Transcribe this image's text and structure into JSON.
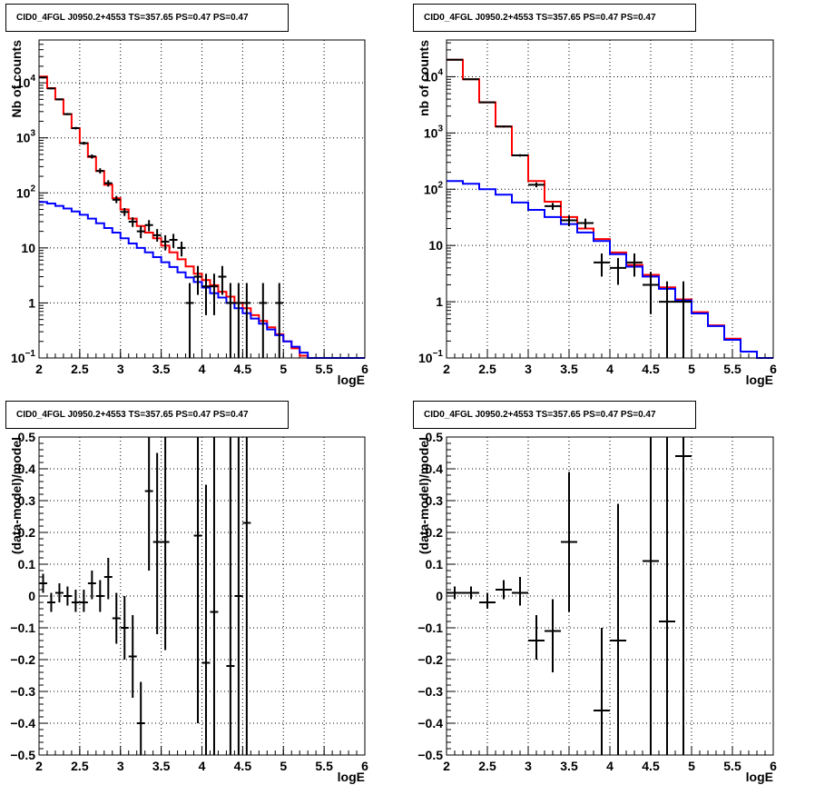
{
  "chart_data": [
    {
      "type": "line",
      "panel": "top-left",
      "title": "CID0_4FGL J0950.2+4553 TS=357.65 PS=0.47 PS=0.47",
      "xlabel": "logE",
      "ylabel": "Nb of counts",
      "xlim": [
        2,
        6
      ],
      "ylim": [
        0.1,
        60000
      ],
      "yscale": "log",
      "grid": true,
      "x_ticks": [
        "2",
        "2.5",
        "3",
        "3.5",
        "4",
        "4.5",
        "5",
        "5.5",
        "6"
      ],
      "y_ticks": [
        {
          "v": 0.1,
          "label": "10",
          "sup": "−1"
        },
        {
          "v": 1,
          "label": "1",
          "sup": ""
        },
        {
          "v": 10,
          "label": "10",
          "sup": ""
        },
        {
          "v": 100,
          "label": "10",
          "sup": "2"
        },
        {
          "v": 1000,
          "label": "10",
          "sup": "3"
        },
        {
          "v": 10000,
          "label": "10",
          "sup": "4"
        }
      ],
      "series": [
        {
          "color": "#ff0000",
          "edges": [
            2.0,
            2.1,
            2.2,
            2.3,
            2.4,
            2.5,
            2.6,
            2.7,
            2.8,
            2.9,
            3.0,
            3.1,
            3.2,
            3.3,
            3.4,
            3.5,
            3.6,
            3.7,
            3.8,
            3.9,
            4.0,
            4.1,
            4.2,
            4.3,
            4.4,
            4.5,
            4.6,
            4.7,
            4.8,
            4.9,
            5.0,
            5.1,
            5.2,
            5.3,
            5.4
          ],
          "values": [
            13000,
            8000,
            5000,
            2700,
            1500,
            800,
            450,
            250,
            140,
            80,
            50,
            34,
            25,
            19,
            15,
            11,
            8.3,
            6.2,
            4.6,
            3.4,
            2.6,
            2.1,
            1.6,
            1.3,
            1.0,
            0.8,
            0.6,
            0.47,
            0.36,
            0.27,
            0.2,
            0.15,
            0.11,
            0.1
          ]
        },
        {
          "color": "#0000ff",
          "edges": [
            2.0,
            2.1,
            2.2,
            2.3,
            2.4,
            2.5,
            2.6,
            2.7,
            2.8,
            2.9,
            3.0,
            3.1,
            3.2,
            3.3,
            3.4,
            3.5,
            3.6,
            3.7,
            3.8,
            3.9,
            4.0,
            4.1,
            4.2,
            4.3,
            4.4,
            4.5,
            4.6,
            4.7,
            4.8,
            4.9,
            5.0,
            5.1,
            5.2,
            5.3,
            5.4,
            5.5,
            5.6,
            5.7,
            5.8,
            5.9,
            6.0
          ],
          "values": [
            68,
            64,
            58,
            52,
            46,
            40,
            34,
            28,
            23,
            19,
            15,
            12,
            10,
            8.3,
            6.8,
            5.5,
            4.5,
            3.6,
            2.9,
            2.4,
            1.9,
            1.5,
            1.25,
            1.0,
            0.8,
            0.65,
            0.52,
            0.42,
            0.33,
            0.26,
            0.2,
            0.16,
            0.125,
            0.1,
            0.1,
            0.1,
            0.1,
            0.1,
            0.1,
            0.1
          ]
        }
      ],
      "points": {
        "color": "#000000",
        "xerr": 0.05,
        "data": [
          {
            "x": 2.05,
            "y": 12500,
            "lo": 12000,
            "hi": 13000
          },
          {
            "x": 2.15,
            "y": 7900,
            "lo": 7600,
            "hi": 8200
          },
          {
            "x": 2.25,
            "y": 5000,
            "lo": 4800,
            "hi": 5200
          },
          {
            "x": 2.35,
            "y": 2700,
            "lo": 2580,
            "hi": 2820
          },
          {
            "x": 2.45,
            "y": 1500,
            "lo": 1420,
            "hi": 1580
          },
          {
            "x": 2.55,
            "y": 800,
            "lo": 750,
            "hi": 850
          },
          {
            "x": 2.65,
            "y": 460,
            "lo": 420,
            "hi": 500
          },
          {
            "x": 2.75,
            "y": 250,
            "lo": 225,
            "hi": 280
          },
          {
            "x": 2.85,
            "y": 150,
            "lo": 130,
            "hi": 170
          },
          {
            "x": 2.95,
            "y": 75,
            "lo": 65,
            "hi": 88
          },
          {
            "x": 3.05,
            "y": 45,
            "lo": 38,
            "hi": 53
          },
          {
            "x": 3.15,
            "y": 30,
            "lo": 24,
            "hi": 36
          },
          {
            "x": 3.25,
            "y": 20,
            "lo": 15,
            "hi": 25
          },
          {
            "x": 3.35,
            "y": 26,
            "lo": 20,
            "hi": 32
          },
          {
            "x": 3.45,
            "y": 17,
            "lo": 13,
            "hi": 22
          },
          {
            "x": 3.55,
            "y": 13,
            "lo": 9,
            "hi": 17
          },
          {
            "x": 3.65,
            "y": 14,
            "lo": 10,
            "hi": 18
          },
          {
            "x": 3.75,
            "y": 10,
            "lo": 7,
            "hi": 13
          },
          {
            "x": 3.85,
            "y": 1,
            "lo": 0.1,
            "hi": 2.3
          },
          {
            "x": 3.95,
            "y": 3,
            "lo": 1.4,
            "hi": 4.7
          },
          {
            "x": 4.05,
            "y": 2,
            "lo": 0.6,
            "hi": 3.4
          },
          {
            "x": 4.15,
            "y": 2,
            "lo": 0.6,
            "hi": 3.4
          },
          {
            "x": 4.25,
            "y": 3,
            "lo": 1.4,
            "hi": 4.7
          },
          {
            "x": 4.35,
            "y": 1,
            "lo": 0.1,
            "hi": 2.3
          },
          {
            "x": 4.45,
            "y": 1,
            "lo": 0.1,
            "hi": 2.3
          },
          {
            "x": 4.55,
            "y": 1,
            "lo": 0.1,
            "hi": 2.3
          },
          {
            "x": 4.75,
            "y": 1,
            "lo": 0.1,
            "hi": 2.3
          },
          {
            "x": 4.95,
            "y": 1,
            "lo": 0.1,
            "hi": 2.3
          }
        ]
      }
    },
    {
      "type": "line",
      "panel": "top-right",
      "title": "CID0_4FGL J0950.2+4553 TS=357.65 PS=0.47 PS=0.47",
      "xlabel": "logE",
      "ylabel": "nb of counts",
      "xlim": [
        2,
        6
      ],
      "ylim": [
        0.1,
        45000
      ],
      "yscale": "log",
      "grid": true,
      "x_ticks": [
        "2",
        "2.5",
        "3",
        "3.5",
        "4",
        "4.5",
        "5",
        "5.5",
        "6"
      ],
      "y_ticks": [
        {
          "v": 0.1,
          "label": "10",
          "sup": "−1"
        },
        {
          "v": 1,
          "label": "1",
          "sup": ""
        },
        {
          "v": 10,
          "label": "10",
          "sup": ""
        },
        {
          "v": 100,
          "label": "10",
          "sup": "2"
        },
        {
          "v": 1000,
          "label": "10",
          "sup": "3"
        },
        {
          "v": 10000,
          "label": "10",
          "sup": "4"
        }
      ],
      "series": [
        {
          "color": "#ff0000",
          "edges": [
            2.0,
            2.2,
            2.4,
            2.6,
            2.8,
            3.0,
            3.2,
            3.4,
            3.6,
            3.8,
            4.0,
            4.2,
            4.4,
            4.6,
            4.8,
            5.0,
            5.2,
            5.4,
            5.6,
            5.8,
            6.0
          ],
          "values": [
            20000,
            9000,
            3500,
            1300,
            400,
            140,
            60,
            32,
            20,
            13,
            7.5,
            4.5,
            3.0,
            1.8,
            1.1,
            0.65,
            0.38,
            0.22,
            0.13,
            0.1
          ]
        },
        {
          "color": "#0000ff",
          "edges": [
            2.0,
            2.2,
            2.4,
            2.6,
            2.8,
            3.0,
            3.2,
            3.4,
            3.6,
            3.8,
            4.0,
            4.2,
            4.4,
            4.6,
            4.8,
            5.0,
            5.2,
            5.4,
            5.6,
            5.8,
            6.0
          ],
          "values": [
            140,
            125,
            100,
            80,
            58,
            43,
            32,
            24,
            17,
            12,
            7.0,
            4.2,
            2.8,
            1.7,
            1.05,
            0.62,
            0.37,
            0.21,
            0.13,
            0.1
          ]
        }
      ],
      "points": {
        "color": "#000000",
        "xerr": 0.1,
        "data": [
          {
            "x": 2.1,
            "y": 20000,
            "lo": 19600,
            "hi": 20400
          },
          {
            "x": 2.3,
            "y": 9000,
            "lo": 8800,
            "hi": 9200
          },
          {
            "x": 2.5,
            "y": 3500,
            "lo": 3400,
            "hi": 3600
          },
          {
            "x": 2.7,
            "y": 1300,
            "lo": 1250,
            "hi": 1350
          },
          {
            "x": 2.9,
            "y": 400,
            "lo": 380,
            "hi": 420
          },
          {
            "x": 3.1,
            "y": 120,
            "lo": 108,
            "hi": 132
          },
          {
            "x": 3.3,
            "y": 50,
            "lo": 43,
            "hi": 57
          },
          {
            "x": 3.5,
            "y": 28,
            "lo": 22,
            "hi": 34
          },
          {
            "x": 3.7,
            "y": 25,
            "lo": 20,
            "hi": 30
          },
          {
            "x": 3.9,
            "y": 5,
            "lo": 2.8,
            "hi": 7.2
          },
          {
            "x": 4.1,
            "y": 4,
            "lo": 2.0,
            "hi": 6.0
          },
          {
            "x": 4.3,
            "y": 5,
            "lo": 2.8,
            "hi": 7.2
          },
          {
            "x": 4.5,
            "y": 2,
            "lo": 0.6,
            "hi": 3.4
          },
          {
            "x": 4.7,
            "y": 1,
            "lo": 0.1,
            "hi": 2.3
          },
          {
            "x": 4.9,
            "y": 1,
            "lo": 0.1,
            "hi": 2.3
          }
        ]
      }
    },
    {
      "type": "scatter",
      "panel": "bottom-left",
      "title": "CID0_4FGL J0950.2+4553 TS=357.65 PS=0.47 PS=0.47",
      "xlabel": "logE",
      "ylabel": "(data-model)/model",
      "xlim": [
        2,
        6
      ],
      "ylim": [
        -0.5,
        0.5
      ],
      "yscale": "linear",
      "grid": true,
      "x_ticks": [
        "2",
        "2.5",
        "3",
        "3.5",
        "4",
        "4.5",
        "5",
        "5.5",
        "6"
      ],
      "y_ticks": [
        "−0.5",
        "−0.4",
        "−0.3",
        "−0.2",
        "−0.1",
        "0",
        "0.1",
        "0.2",
        "0.3",
        "0.4",
        "0.5"
      ],
      "points": {
        "color": "#000000",
        "xerr": 0.05,
        "data": [
          {
            "x": 2.05,
            "y": 0.04,
            "lo": 0.01,
            "hi": 0.07
          },
          {
            "x": 2.15,
            "y": -0.02,
            "lo": -0.05,
            "hi": 0.01
          },
          {
            "x": 2.25,
            "y": 0.01,
            "lo": -0.02,
            "hi": 0.04
          },
          {
            "x": 2.35,
            "y": 0.0,
            "lo": -0.03,
            "hi": 0.03
          },
          {
            "x": 2.45,
            "y": -0.02,
            "lo": -0.05,
            "hi": 0.02
          },
          {
            "x": 2.55,
            "y": -0.02,
            "lo": -0.05,
            "hi": 0.02
          },
          {
            "x": 2.65,
            "y": 0.04,
            "lo": -0.01,
            "hi": 0.08
          },
          {
            "x": 2.75,
            "y": 0.0,
            "lo": -0.05,
            "hi": 0.05
          },
          {
            "x": 2.85,
            "y": 0.06,
            "lo": -0.01,
            "hi": 0.12
          },
          {
            "x": 2.95,
            "y": -0.07,
            "lo": -0.15,
            "hi": 0.01
          },
          {
            "x": 3.05,
            "y": -0.1,
            "lo": -0.2,
            "hi": 0.0
          },
          {
            "x": 3.15,
            "y": -0.19,
            "lo": -0.32,
            "hi": -0.06
          },
          {
            "x": 3.25,
            "y": -0.4,
            "lo": -0.5,
            "hi": -0.27
          },
          {
            "x": 3.35,
            "y": 0.33,
            "lo": 0.08,
            "hi": 0.5
          },
          {
            "x": 3.45,
            "y": 0.17,
            "lo": -0.12,
            "hi": 0.45
          },
          {
            "x": 3.55,
            "y": 0.17,
            "lo": -0.17,
            "hi": 0.5
          },
          {
            "x": 3.95,
            "y": 0.19,
            "lo": -0.4,
            "hi": 0.5
          },
          {
            "x": 4.05,
            "y": -0.21,
            "lo": -0.5,
            "hi": 0.35
          },
          {
            "x": 4.15,
            "y": -0.05,
            "lo": -0.5,
            "hi": 0.5
          },
          {
            "x": 4.35,
            "y": -0.22,
            "lo": -0.5,
            "hi": 0.5
          },
          {
            "x": 4.45,
            "y": 0.0,
            "lo": -0.5,
            "hi": 0.5
          },
          {
            "x": 4.55,
            "y": 0.23,
            "lo": -0.5,
            "hi": 0.5
          }
        ]
      }
    },
    {
      "type": "scatter",
      "panel": "bottom-right",
      "title": "CID0_4FGL J0950.2+4553 TS=357.65 PS=0.47 PS=0.47",
      "xlabel": "logE",
      "ylabel": "(data-model)/model",
      "xlim": [
        2,
        6
      ],
      "ylim": [
        -0.5,
        0.5
      ],
      "yscale": "linear",
      "grid": true,
      "x_ticks": [
        "2",
        "2.5",
        "3",
        "3.5",
        "4",
        "4.5",
        "5",
        "5.5",
        "6"
      ],
      "y_ticks": [
        "−0.5",
        "−0.4",
        "−0.3",
        "−0.2",
        "−0.1",
        "0",
        "0.1",
        "0.2",
        "0.3",
        "0.4",
        "0.5"
      ],
      "points": {
        "color": "#000000",
        "xerr": 0.1,
        "data": [
          {
            "x": 2.1,
            "y": 0.01,
            "lo": -0.01,
            "hi": 0.03
          },
          {
            "x": 2.3,
            "y": 0.01,
            "lo": -0.01,
            "hi": 0.03
          },
          {
            "x": 2.5,
            "y": -0.02,
            "lo": -0.04,
            "hi": 0.01
          },
          {
            "x": 2.7,
            "y": 0.02,
            "lo": -0.01,
            "hi": 0.05
          },
          {
            "x": 2.9,
            "y": 0.01,
            "lo": -0.03,
            "hi": 0.06
          },
          {
            "x": 3.1,
            "y": -0.14,
            "lo": -0.2,
            "hi": -0.06
          },
          {
            "x": 3.3,
            "y": -0.11,
            "lo": -0.24,
            "hi": -0.01
          },
          {
            "x": 3.5,
            "y": 0.17,
            "lo": -0.05,
            "hi": 0.39
          },
          {
            "x": 3.9,
            "y": -0.36,
            "lo": -0.5,
            "hi": -0.1
          },
          {
            "x": 4.1,
            "y": -0.14,
            "lo": -0.5,
            "hi": 0.29
          },
          {
            "x": 4.5,
            "y": 0.11,
            "lo": -0.5,
            "hi": 0.5
          },
          {
            "x": 4.7,
            "y": -0.08,
            "lo": -0.5,
            "hi": 0.5
          },
          {
            "x": 4.9,
            "y": 0.44,
            "lo": -0.5,
            "hi": 0.5
          }
        ]
      }
    }
  ]
}
